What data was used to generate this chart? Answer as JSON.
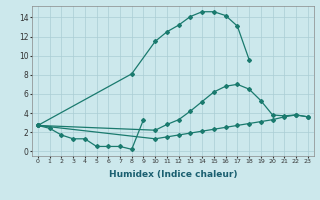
{
  "xlabel": "Humidex (Indice chaleur)",
  "background_color": "#cce8ec",
  "line_color": "#1a7a6e",
  "grid_color": "#aacdd4",
  "xlim": [
    -0.5,
    23.5
  ],
  "ylim": [
    -0.5,
    15.2
  ],
  "line1_x": [
    0,
    1,
    2,
    3,
    4,
    5,
    6,
    7,
    8,
    9
  ],
  "line1_y": [
    2.7,
    2.4,
    1.7,
    1.3,
    1.3,
    0.5,
    0.5,
    0.5,
    0.2,
    3.3
  ],
  "line2_x": [
    0,
    8,
    10,
    11,
    12,
    13,
    14,
    15,
    16,
    17,
    18
  ],
  "line2_y": [
    2.7,
    8.1,
    11.5,
    12.5,
    13.2,
    14.1,
    14.6,
    14.6,
    14.2,
    13.1,
    9.6
  ],
  "line3_x": [
    0,
    10,
    11,
    12,
    13,
    14,
    15,
    16,
    17,
    18,
    19,
    20,
    21,
    22,
    23
  ],
  "line3_y": [
    2.7,
    2.2,
    2.8,
    3.3,
    4.2,
    5.2,
    6.2,
    6.8,
    7.0,
    6.5,
    5.3,
    3.8,
    3.7,
    3.8,
    3.6
  ],
  "line4_x": [
    0,
    10,
    11,
    12,
    13,
    14,
    15,
    16,
    17,
    18,
    19,
    20,
    21,
    22,
    23
  ],
  "line4_y": [
    2.7,
    1.3,
    1.5,
    1.7,
    1.9,
    2.1,
    2.3,
    2.5,
    2.7,
    2.9,
    3.1,
    3.3,
    3.6,
    3.8,
    3.6
  ],
  "yticks": [
    0,
    2,
    4,
    6,
    8,
    10,
    12,
    14
  ]
}
